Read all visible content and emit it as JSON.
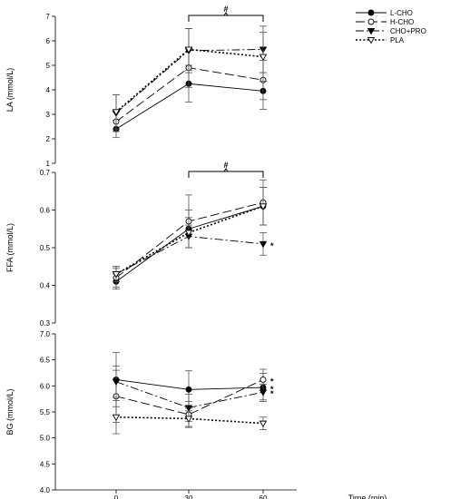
{
  "chart_data": [
    {
      "type": "line",
      "ylabel": "LA (mmol/L)",
      "ylim": [
        1,
        7
      ],
      "yticks": [
        "1",
        "2",
        "3",
        "4",
        "5",
        "6",
        "7"
      ],
      "x": [
        0,
        30,
        60
      ],
      "series": [
        {
          "name": "L-CHO",
          "values": [
            2.4,
            4.25,
            3.95
          ],
          "err": [
            0.35,
            0.75,
            0.75
          ]
        },
        {
          "name": "H-CHO",
          "values": [
            2.7,
            4.9,
            4.4
          ],
          "err": [
            0.4,
            0.8,
            0.8
          ]
        },
        {
          "name": "CHO+PRO",
          "values": [
            3.05,
            5.6,
            5.65
          ],
          "err": [
            0.75,
            0.9,
            0.95
          ]
        },
        {
          "name": "PLA",
          "values": [
            3.1,
            5.65,
            5.35
          ],
          "err": [
            0.7,
            0.85,
            1.0
          ]
        }
      ],
      "annotations": [
        {
          "text": "#",
          "x_from": 30,
          "x_to": 60
        }
      ]
    },
    {
      "type": "line",
      "ylabel": "FFA (mmol/L)",
      "ylim": [
        0.3,
        0.7
      ],
      "yticks": [
        "0.3",
        "0.4",
        "0.5",
        "0.6",
        "0.7"
      ],
      "x": [
        0,
        30,
        60
      ],
      "series": [
        {
          "name": "L-CHO",
          "values": [
            0.41,
            0.55,
            0.61
          ],
          "err": [
            0.02,
            0.05,
            0.05
          ]
        },
        {
          "name": "H-CHO",
          "values": [
            0.42,
            0.57,
            0.62
          ],
          "err": [
            0.025,
            0.07,
            0.06
          ]
        },
        {
          "name": "CHO+PRO",
          "values": [
            0.43,
            0.53,
            0.51
          ],
          "err": [
            0.02,
            0.03,
            0.03
          ]
        },
        {
          "name": "PLA",
          "values": [
            0.43,
            0.54,
            0.61
          ],
          "err": [
            0.02,
            0.04,
            0.05
          ]
        }
      ],
      "annotations": [
        {
          "text": "#",
          "x_from": 30,
          "x_to": 60
        }
      ],
      "point_marks": [
        {
          "text": "*",
          "series": "CHO+PRO",
          "x": 60
        }
      ]
    },
    {
      "type": "line",
      "ylabel": "BG (mmol/L)",
      "ylim": [
        4.0,
        7.0
      ],
      "yticks": [
        "4.0",
        "4.5",
        "5.0",
        "5.5",
        "6.0",
        "6.5",
        "7.0"
      ],
      "xlabel": "Time (min)",
      "xticks": [
        "0",
        "30",
        "60"
      ],
      "x": [
        0,
        30,
        60
      ],
      "series": [
        {
          "name": "L-CHO",
          "values": [
            6.12,
            5.93,
            5.97
          ],
          "err": [
            0.52,
            0.36,
            0.27
          ]
        },
        {
          "name": "H-CHO",
          "values": [
            5.8,
            5.45,
            6.12
          ],
          "err": [
            0.5,
            0.25,
            0.2
          ]
        },
        {
          "name": "CHO+PRO",
          "values": [
            6.08,
            5.58,
            5.88
          ],
          "err": [
            0.3,
            0.26,
            0.15
          ]
        },
        {
          "name": "PLA",
          "values": [
            5.4,
            5.37,
            5.28
          ],
          "err": [
            0.32,
            0.15,
            0.12
          ]
        }
      ],
      "point_marks": [
        {
          "text": "*",
          "series": "H-CHO",
          "x": 60
        },
        {
          "text": "*",
          "series": "L-CHO",
          "x": 60
        },
        {
          "text": "*",
          "series": "CHO+PRO",
          "x": 60
        }
      ]
    }
  ],
  "legend": {
    "placement": "top-right",
    "entries": [
      {
        "label": "L-CHO",
        "marker": "circle-filled",
        "dash": "solid"
      },
      {
        "label": "H-CHO",
        "marker": "circle-open",
        "dash": "long-dash"
      },
      {
        "label": "CHO+PRO",
        "marker": "triangle-down-filled",
        "dash": "dash-dot"
      },
      {
        "label": "PLA",
        "marker": "triangle-down-open",
        "dash": "dotted"
      }
    ]
  }
}
